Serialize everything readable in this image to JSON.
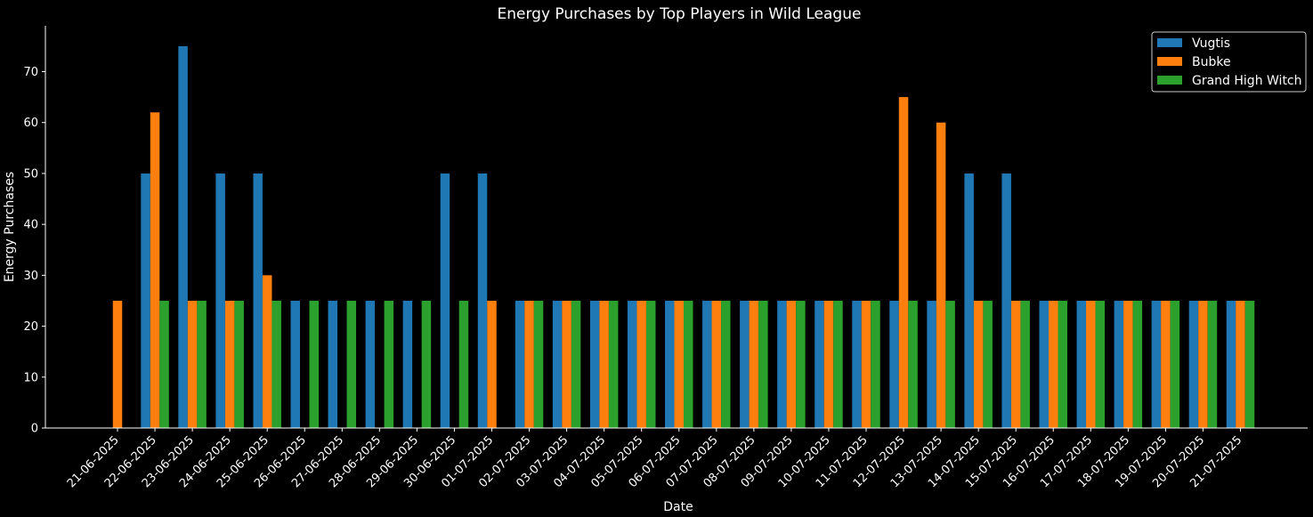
{
  "chart_data": {
    "type": "bar",
    "title": "Energy Purchases by Top Players in Wild League",
    "xlabel": "Date",
    "ylabel": "Energy Purchases",
    "ylim": [
      0,
      79
    ],
    "yticks": [
      0,
      10,
      20,
      30,
      40,
      50,
      60,
      70
    ],
    "grid": false,
    "legend_position": "top-right",
    "categories": [
      "21-06-2025",
      "22-06-2025",
      "23-06-2025",
      "24-06-2025",
      "25-06-2025",
      "26-06-2025",
      "27-06-2025",
      "28-06-2025",
      "29-06-2025",
      "30-06-2025",
      "01-07-2025",
      "02-07-2025",
      "03-07-2025",
      "04-07-2025",
      "05-07-2025",
      "06-07-2025",
      "07-07-2025",
      "08-07-2025",
      "09-07-2025",
      "10-07-2025",
      "11-07-2025",
      "12-07-2025",
      "13-07-2025",
      "14-07-2025",
      "15-07-2025",
      "16-07-2025",
      "17-07-2025",
      "18-07-2025",
      "19-07-2025",
      "20-07-2025",
      "21-07-2025"
    ],
    "series": [
      {
        "name": "Vugtis",
        "color": "#1f77b4",
        "values": [
          0,
          50,
          75,
          50,
          50,
          25,
          25,
          25,
          25,
          50,
          50,
          25,
          25,
          25,
          25,
          25,
          25,
          25,
          25,
          25,
          25,
          25,
          25,
          50,
          50,
          25,
          25,
          25,
          25,
          25,
          25
        ]
      },
      {
        "name": "Bubke",
        "color": "#ff7f0e",
        "values": [
          25,
          62,
          25,
          25,
          30,
          0,
          0,
          0,
          0,
          0,
          25,
          25,
          25,
          25,
          25,
          25,
          25,
          25,
          25,
          25,
          25,
          65,
          60,
          25,
          25,
          25,
          25,
          25,
          25,
          25,
          25
        ]
      },
      {
        "name": "Grand High Witch",
        "color": "#2ca02c",
        "values": [
          0,
          25,
          25,
          25,
          25,
          25,
          25,
          25,
          25,
          25,
          0,
          25,
          25,
          25,
          25,
          25,
          25,
          25,
          25,
          25,
          25,
          25,
          25,
          25,
          25,
          25,
          25,
          25,
          25,
          25,
          25
        ]
      }
    ]
  }
}
